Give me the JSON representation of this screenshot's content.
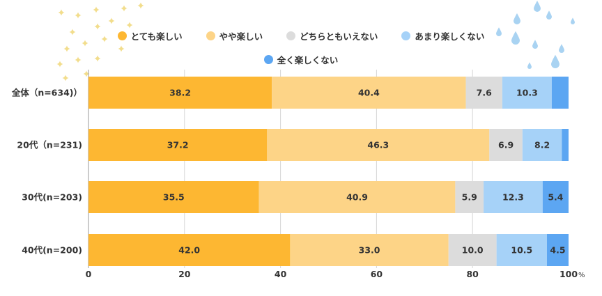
{
  "chart_data": {
    "type": "bar",
    "orientation": "horizontal",
    "stacked": true,
    "categories": [
      "全体（n=634)）",
      "20代（n=231)",
      "30代(n=203)",
      "40代(n=200)"
    ],
    "series": [
      {
        "name": "とても楽しい",
        "color": "#FDB732",
        "values": [
          38.2,
          37.2,
          35.5,
          42.0
        ],
        "labels": [
          "38.2",
          "37.2",
          "35.5",
          "42.0"
        ]
      },
      {
        "name": "やや楽しい",
        "color": "#FDD487",
        "values": [
          40.4,
          46.3,
          40.9,
          33.0
        ],
        "labels": [
          "40.4",
          "46.3",
          "40.9",
          "33.0"
        ]
      },
      {
        "name": "どちらともいえない",
        "color": "#DCDCDC",
        "values": [
          7.6,
          6.9,
          5.9,
          10.0
        ],
        "labels": [
          "7.6",
          "6.9",
          "5.9",
          "10.0"
        ]
      },
      {
        "name": "あまり楽しくない",
        "color": "#A6D2F8",
        "values": [
          10.3,
          8.2,
          12.3,
          10.5
        ],
        "labels": [
          "10.3",
          "8.2",
          "12.3",
          "10.5"
        ]
      },
      {
        "name": "全く楽しくない",
        "color": "#5CA6F2",
        "values": [
          3.5,
          1.4,
          5.4,
          4.5
        ],
        "labels": [
          "",
          "",
          "5.4",
          "4.5"
        ]
      }
    ],
    "xlim": [
      0,
      100
    ],
    "xticks": [
      "0",
      "20",
      "40",
      "60",
      "80",
      "100"
    ],
    "xunit": "%",
    "grid": true,
    "legend_position": "top"
  }
}
